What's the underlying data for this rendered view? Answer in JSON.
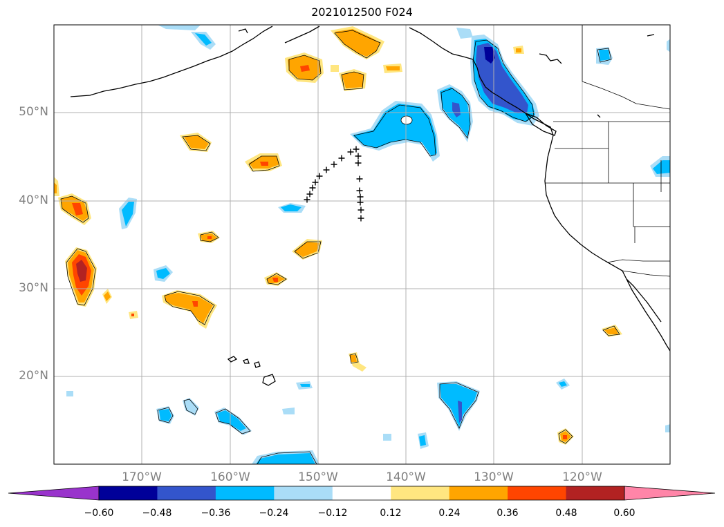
{
  "title": "2021012500 F024",
  "map": {
    "lat_labels": [
      "50°N",
      "40°N",
      "30°N",
      "20°N"
    ],
    "lon_labels": [
      "170°W",
      "160°W",
      "150°W",
      "140°W",
      "130°W",
      "120°W"
    ],
    "grid": true
  },
  "colorbar": {
    "ticks": [
      "−0.60",
      "−0.48",
      "−0.36",
      "−0.24",
      "−0.12",
      "0.12",
      "0.24",
      "0.36",
      "0.48",
      "0.60"
    ],
    "colors": [
      "#9933cc",
      "#000099",
      "#3355cc",
      "#00bbff",
      "#aaddf7",
      "#ffffff",
      "#ffe680",
      "#ffa500",
      "#ff4500",
      "#b22222",
      "#ff85a8"
    ],
    "extend": "both"
  },
  "markers": {
    "symbol": "+"
  }
}
